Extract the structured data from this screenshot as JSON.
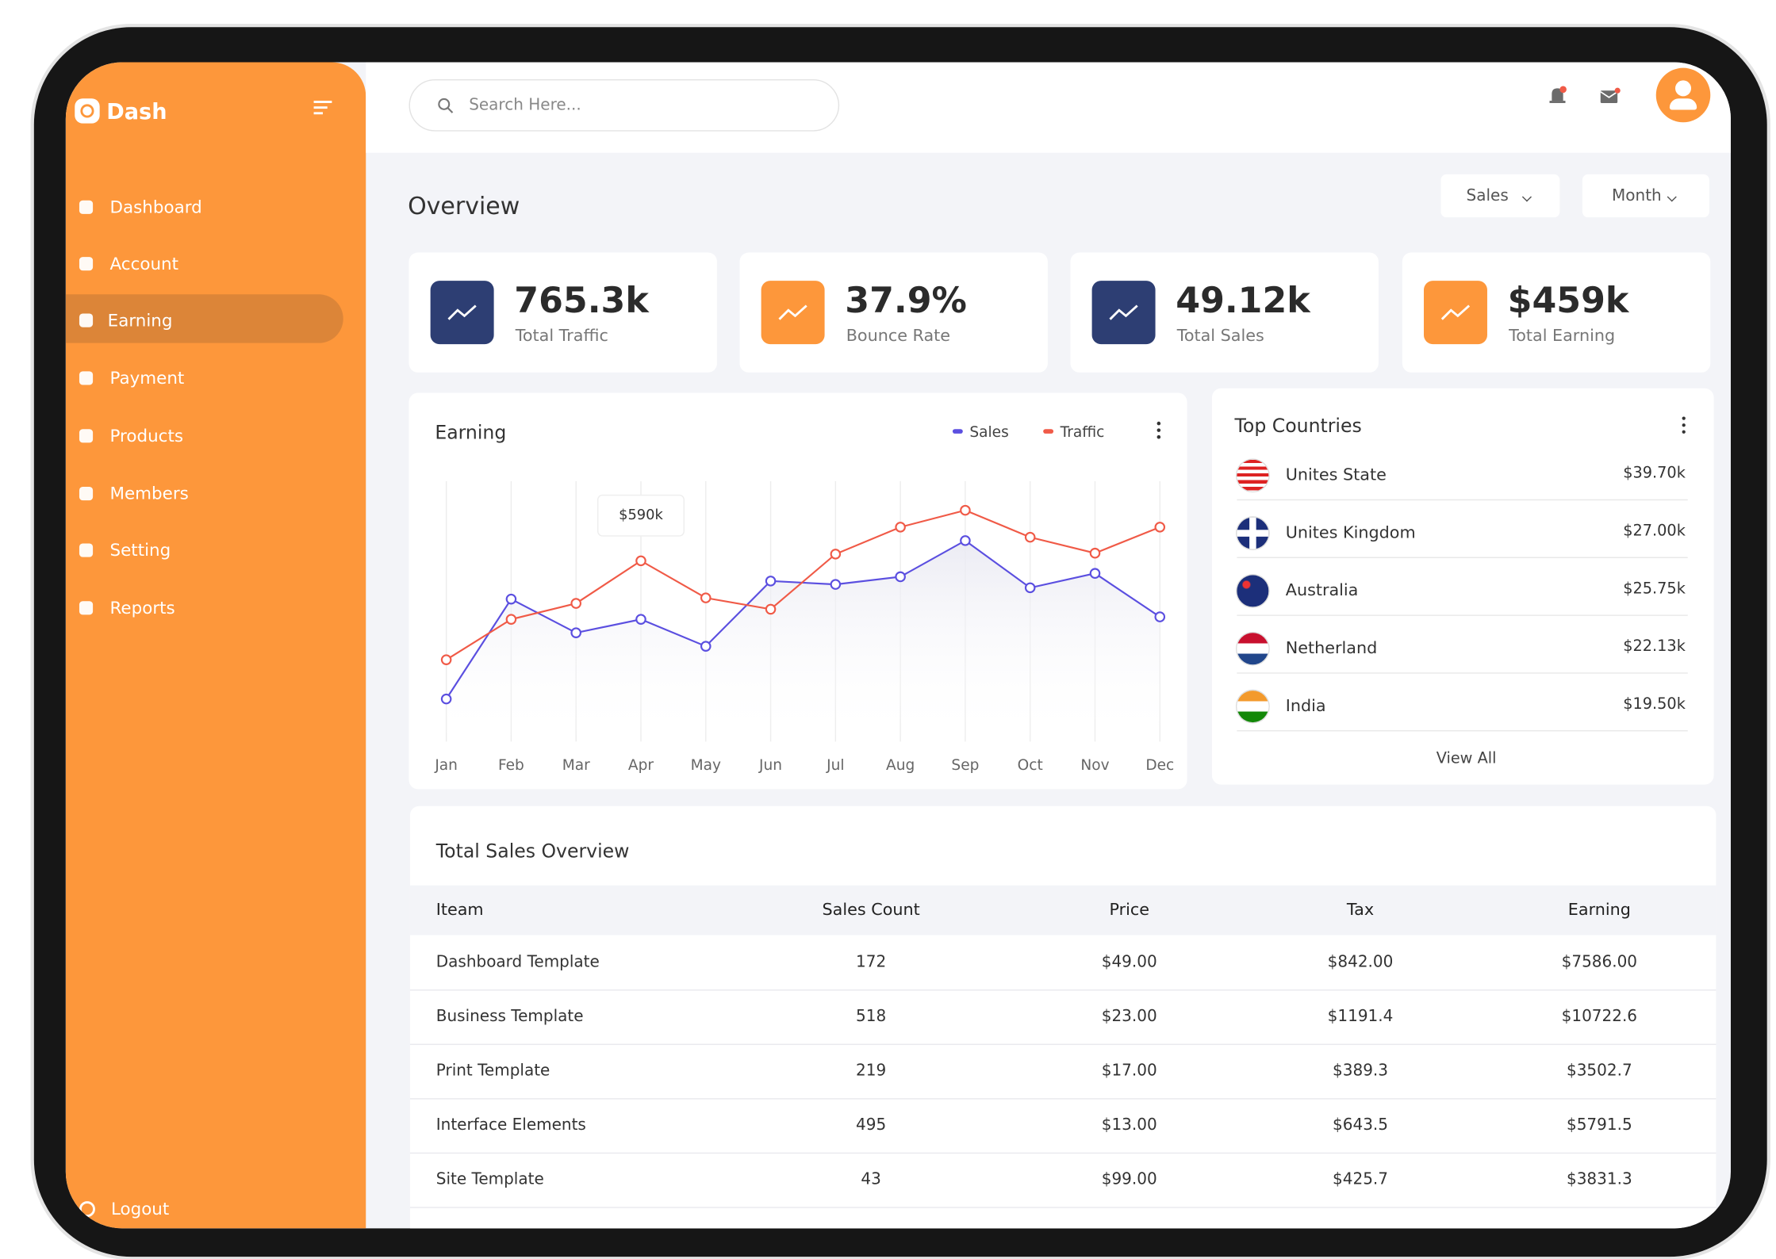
{
  "sidebar": {
    "brand": "Dash",
    "menu": [
      "Dashboard",
      "Account",
      "Earning",
      "Payment",
      "Products",
      "Members",
      "Setting",
      "Reports"
    ],
    "logout": "Logout"
  },
  "header": {
    "search_placeholder": "Search Here..."
  },
  "overview": {
    "title": "Overview",
    "filters": [
      "Sales",
      "Month"
    ]
  },
  "stats": [
    {
      "value": "765.3k",
      "label": "Total Traffic"
    },
    {
      "value": "37.9%",
      "label": "Bounce Rate"
    },
    {
      "value": "49.12k",
      "label": "Total Sales"
    },
    {
      "value": "$459k",
      "label": "Total Earning"
    }
  ],
  "chart_data": {
    "type": "line",
    "title": "Earning",
    "categories": [
      "Jan",
      "Feb",
      "Mar",
      "Apr",
      "May",
      "Jun",
      "Jul",
      "Aug",
      "Sep",
      "Oct",
      "Nov",
      "Dec"
    ],
    "series": [
      {
        "name": "Sales",
        "color": "#5b4fe0",
        "values": [
          139,
          465,
          355,
          399,
          311,
          524,
          513,
          538,
          656,
          502,
          549,
          407
        ]
      },
      {
        "name": "Traffic",
        "color": "#f05a47",
        "values": [
          267,
          399,
          451,
          590,
          469,
          432,
          612,
          700,
          755,
          667,
          615,
          700
        ],
        "value_labels": [
          null,
          null,
          null,
          "$590k",
          null,
          null,
          null,
          null,
          null,
          null,
          null,
          null
        ]
      }
    ],
    "ylim": [
      0,
      850
    ],
    "grid": true
  },
  "top_countries": {
    "title": "Top Countries",
    "rows": [
      {
        "name": "Unites State",
        "value": "$39.70k"
      },
      {
        "name": "Unites Kingdom",
        "value": "$27.00k"
      },
      {
        "name": "Australia",
        "value": "$25.75k"
      },
      {
        "name": "Netherland",
        "value": "$22.13k"
      },
      {
        "name": "India",
        "value": "$19.50k"
      }
    ],
    "link": "View All"
  },
  "table": {
    "title": "Total Sales Overview",
    "columns": [
      "Iteam",
      "Sales Count",
      "Price",
      "Tax",
      "Earning"
    ],
    "rows": [
      [
        "Dashboard Template",
        "172",
        "$49.00",
        "$842.00",
        "$7586.00"
      ],
      [
        "Business Template",
        "518",
        "$23.00",
        "$1191.4",
        "$10722.6"
      ],
      [
        "Print Template",
        "219",
        "$17.00",
        "$389.3",
        "$3502.7"
      ],
      [
        "Interface Elements",
        "495",
        "$13.00",
        "$643.5",
        "$5791.5"
      ],
      [
        "Site Template",
        "43",
        "$99.00",
        "$425.7",
        "$3831.3"
      ]
    ]
  }
}
